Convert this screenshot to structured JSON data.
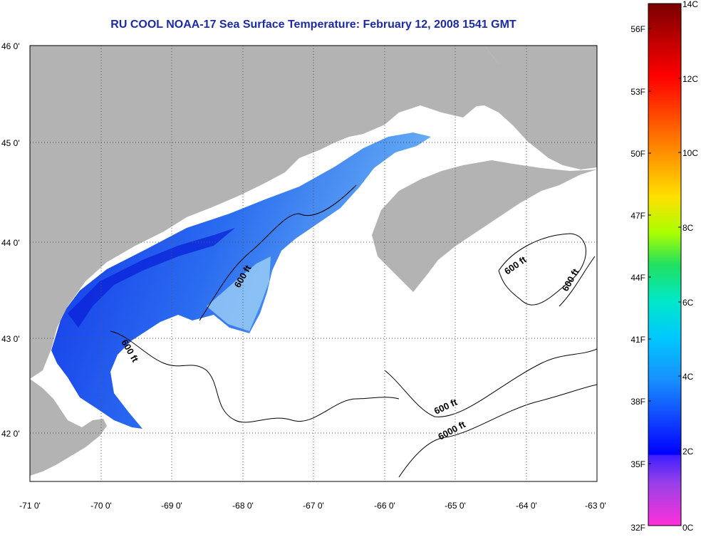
{
  "title": "RU COOL  NOAA-17  Sea Surface Temperature:  February 12, 2008 1541 GMT",
  "map": {
    "lon_range": [
      -71,
      -63
    ],
    "lat_range": [
      41.5,
      46
    ],
    "lon_ticks": [
      "-71 0'",
      "-70 0'",
      "-69 0'",
      "-68 0'",
      "-67 0'",
      "-66 0'",
      "-65 0'",
      "-64 0'",
      "-63 0'"
    ],
    "lat_ticks": [
      "46 0'",
      "45 0'",
      "44 0'",
      "43 0'",
      "42 0'"
    ],
    "land_color": "#b3b3b3",
    "contour_labels": [
      "600 ft",
      "600 ft",
      "600 ft",
      "600 ft",
      "6000 ft"
    ]
  },
  "colorbar": {
    "celsius_labels": [
      "14C",
      "12C",
      "10C",
      "8C",
      "6C",
      "4C",
      "2C",
      "0C"
    ],
    "fahrenheit_labels": [
      "56F",
      "53F",
      "50F",
      "47F",
      "44F",
      "41F",
      "38F",
      "35F",
      "32F"
    ]
  }
}
